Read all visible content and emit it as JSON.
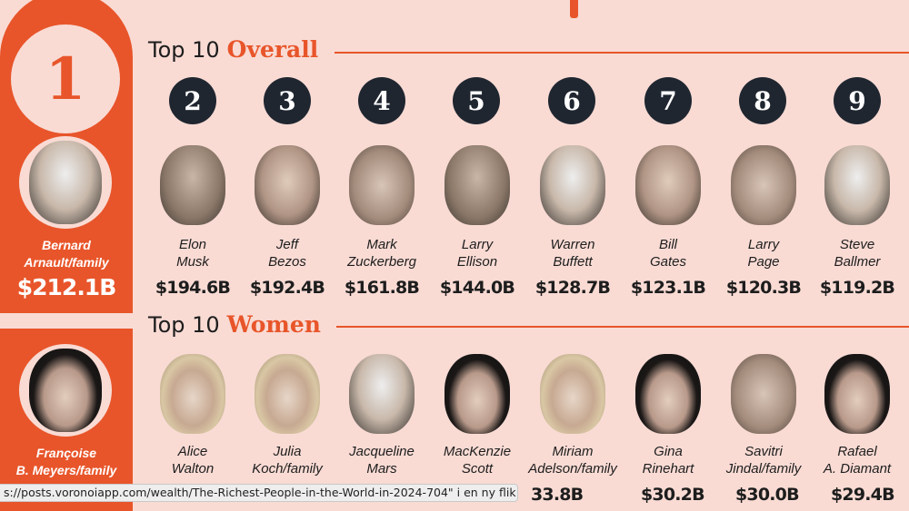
{
  "overall": {
    "title_pre": "Top 10",
    "title_accent": "Overall",
    "leader": {
      "rank": "1",
      "name_line1": "Bernard",
      "name_line2": "Arnault/family",
      "value": "$212.1B"
    },
    "people": [
      {
        "rank": "2",
        "first": "Elon",
        "last": "Musk",
        "value": "$194.6B"
      },
      {
        "rank": "3",
        "first": "Jeff",
        "last": "Bezos",
        "value": "$192.4B"
      },
      {
        "rank": "4",
        "first": "Mark",
        "last": "Zuckerberg",
        "value": "$161.8B"
      },
      {
        "rank": "5",
        "first": "Larry",
        "last": "Ellison",
        "value": "$144.0B"
      },
      {
        "rank": "6",
        "first": "Warren",
        "last": "Buffett",
        "value": "$128.7B"
      },
      {
        "rank": "7",
        "first": "Bill",
        "last": "Gates",
        "value": "$123.1B"
      },
      {
        "rank": "8",
        "first": "Larry",
        "last": "Page",
        "value": "$120.3B"
      },
      {
        "rank": "9",
        "first": "Steve",
        "last": "Ballmer",
        "value": "$119.2B"
      }
    ]
  },
  "women": {
    "title_pre": "Top 10",
    "title_accent": "Women",
    "leader": {
      "name_line1": "Françoise",
      "name_line2": "B. Meyers/family"
    },
    "people": [
      {
        "first": "Alice",
        "last": "Walton",
        "value": ""
      },
      {
        "first": "Julia",
        "last": "Koch/family",
        "value": ""
      },
      {
        "first": "Jacqueline",
        "last": "Mars",
        "value": ""
      },
      {
        "first": "MacKenzie",
        "last": "Scott",
        "value": ""
      },
      {
        "first": "Miriam",
        "last": "Adelson/family",
        "value": "33.8B"
      },
      {
        "first": "Gina",
        "last": "Rinehart",
        "value": "$30.2B"
      },
      {
        "first": "Savitri",
        "last": "Jindal/family",
        "value": "$30.0B"
      },
      {
        "first": "Rafael",
        "last": "A. Diamant",
        "value": "$29.4B"
      }
    ]
  },
  "status_bar": {
    "text": "s://posts.voronoiapp.com/wealth/The-Richest-People-in-the-World-in-2024-704\" i en ny flik"
  },
  "colors": {
    "background": "#f9dbd4",
    "accent": "#e8552a",
    "circle": "#1f2630"
  }
}
